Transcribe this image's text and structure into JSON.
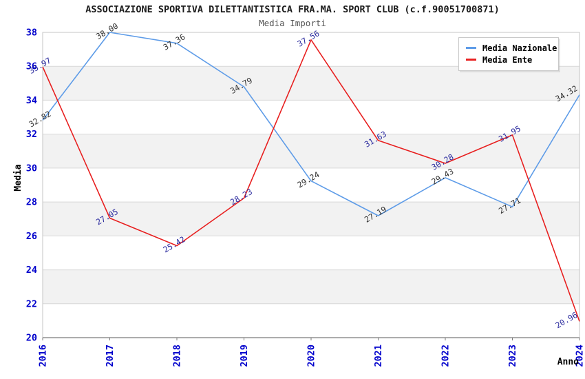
{
  "title": "ASSOCIAZIONE SPORTIVA DILETTANTISTICA FRA.MA. SPORT CLUB (c.f.90051700871)",
  "subtitle": "Media Importi",
  "legend": {
    "items": [
      {
        "label": "Media Nazionale",
        "color": "#5e9ce8"
      },
      {
        "label": "Media Ente",
        "color": "#e82020"
      }
    ]
  },
  "axis_colors": {
    "tick_label": "#0000cc",
    "axis_title": "#000000"
  },
  "chart_data": {
    "type": "line",
    "title": "ASSOCIAZIONE SPORTIVA DILETTANTISTICA FRA.MA. SPORT CLUB (c.f.90051700871)",
    "subtitle": "Media Importi",
    "xlabel": "Anno",
    "ylabel": "Media",
    "x": [
      "2016",
      "2017",
      "2018",
      "2019",
      "2020",
      "2021",
      "2022",
      "2023",
      "2024"
    ],
    "series": [
      {
        "name": "Media Nazionale",
        "color": "#5e9ce8",
        "label_color": "#333333",
        "values": [
          32.82,
          38.0,
          37.36,
          34.79,
          29.24,
          27.19,
          29.43,
          27.71,
          34.32
        ]
      },
      {
        "name": "Media Ente",
        "color": "#e82020",
        "label_color": "#2a2a9e",
        "values": [
          35.97,
          27.05,
          25.42,
          28.23,
          37.56,
          31.63,
          30.28,
          31.95,
          20.96
        ]
      }
    ],
    "ylim": [
      20,
      38
    ],
    "ytick_step": 2,
    "y_ticks": [
      38,
      36,
      34,
      32,
      30,
      28,
      26,
      24,
      22,
      20
    ],
    "grid": true,
    "band_colors": [
      "#ffffff",
      "#f2f2f2"
    ],
    "gridline_color": "#d8d8d8",
    "legend_position": "top-right",
    "value_labels": true
  }
}
